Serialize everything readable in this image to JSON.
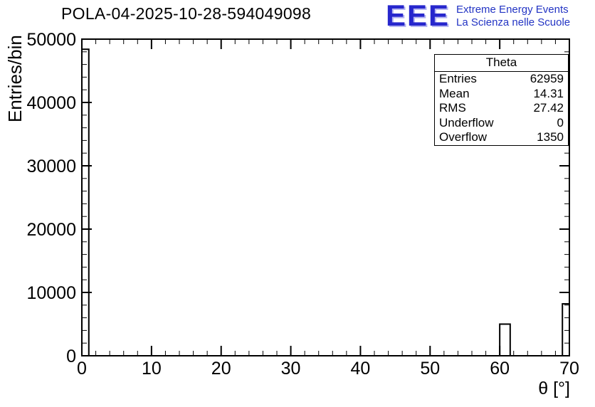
{
  "header": {
    "title": "POLA-04-2025-10-28-594049098",
    "logo_text": "EEE",
    "logo_line1": "Extreme Energy Events",
    "logo_line2": "La Scienza nelle Scuole"
  },
  "colors": {
    "logo_blue": "#2727cd",
    "logo_subtitle_blue": "#2334c4",
    "axis_black": "#000000"
  },
  "stats_box": {
    "title": "Theta",
    "rows": [
      {
        "label": "Entries",
        "value": "62959"
      },
      {
        "label": "Mean",
        "value": "14.31"
      },
      {
        "label": "RMS",
        "value": "27.42"
      },
      {
        "label": "Underflow",
        "value": "0"
      },
      {
        "label": "Overflow",
        "value": "1350"
      }
    ]
  },
  "chart_data": {
    "type": "bar",
    "title": "POLA-04-2025-10-28-594049098",
    "xlabel": "θ [°]",
    "ylabel": "Entries/bin",
    "xlim": [
      0,
      70
    ],
    "ylim": [
      0,
      50000
    ],
    "x_major_step": 10,
    "x_minor_step": 2,
    "y_major_step": 10000,
    "y_minor_step": 2000,
    "grid": false,
    "legend": "none",
    "bins": [
      {
        "x0": 0,
        "x1": 1,
        "count": 48400
      },
      {
        "x0": 60,
        "x1": 61.5,
        "count": 5000
      },
      {
        "x0": 69,
        "x1": 70,
        "count": 8200
      }
    ],
    "stats": {
      "name": "Theta",
      "entries": 62959,
      "mean": 14.31,
      "rms": 27.42,
      "underflow": 0,
      "overflow": 1350
    }
  }
}
